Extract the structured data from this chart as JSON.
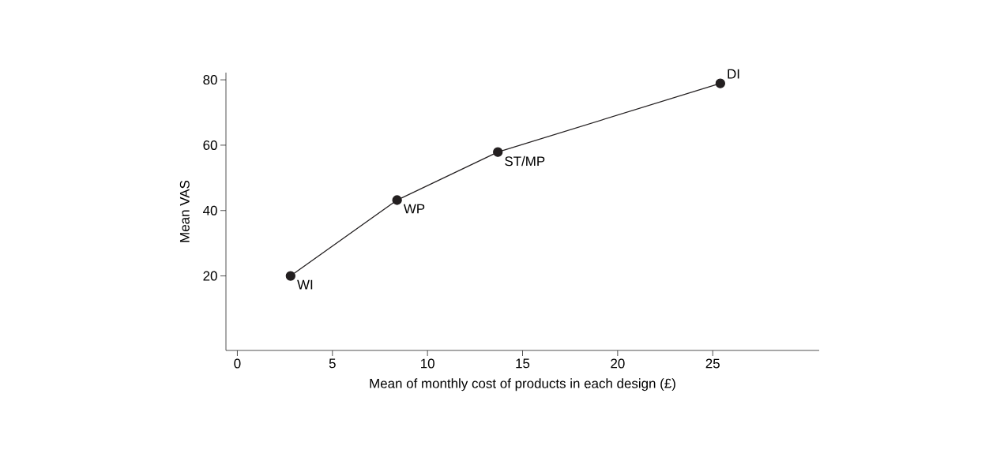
{
  "chart_data": {
    "type": "line",
    "xlabel": "Mean of monthly cost of products in each design (£)",
    "ylabel": "Mean VAS",
    "x": [
      2.8,
      8.4,
      13.7,
      25.4
    ],
    "series": [
      {
        "color": "#231f20",
        "values": [
          20,
          43.2,
          57.9,
          78.9
        ]
      }
    ],
    "marker": "circle",
    "line_style": "solid",
    "xlim": [
      -0.6,
      30.6
    ],
    "ylim": [
      -2.8,
      82.2
    ],
    "xticks": [
      0,
      5,
      10,
      15,
      20,
      25
    ],
    "yticks": [
      20,
      40,
      60,
      80
    ],
    "annotations": [
      {
        "text": "WI",
        "x": 2.8,
        "y": 20
      },
      {
        "text": "WP",
        "x": 8.4,
        "y": 43.2
      },
      {
        "text": "ST/MP",
        "x": 13.7,
        "y": 57.9
      },
      {
        "text": "DI",
        "x": 25.4,
        "y": 78.9
      }
    ]
  }
}
